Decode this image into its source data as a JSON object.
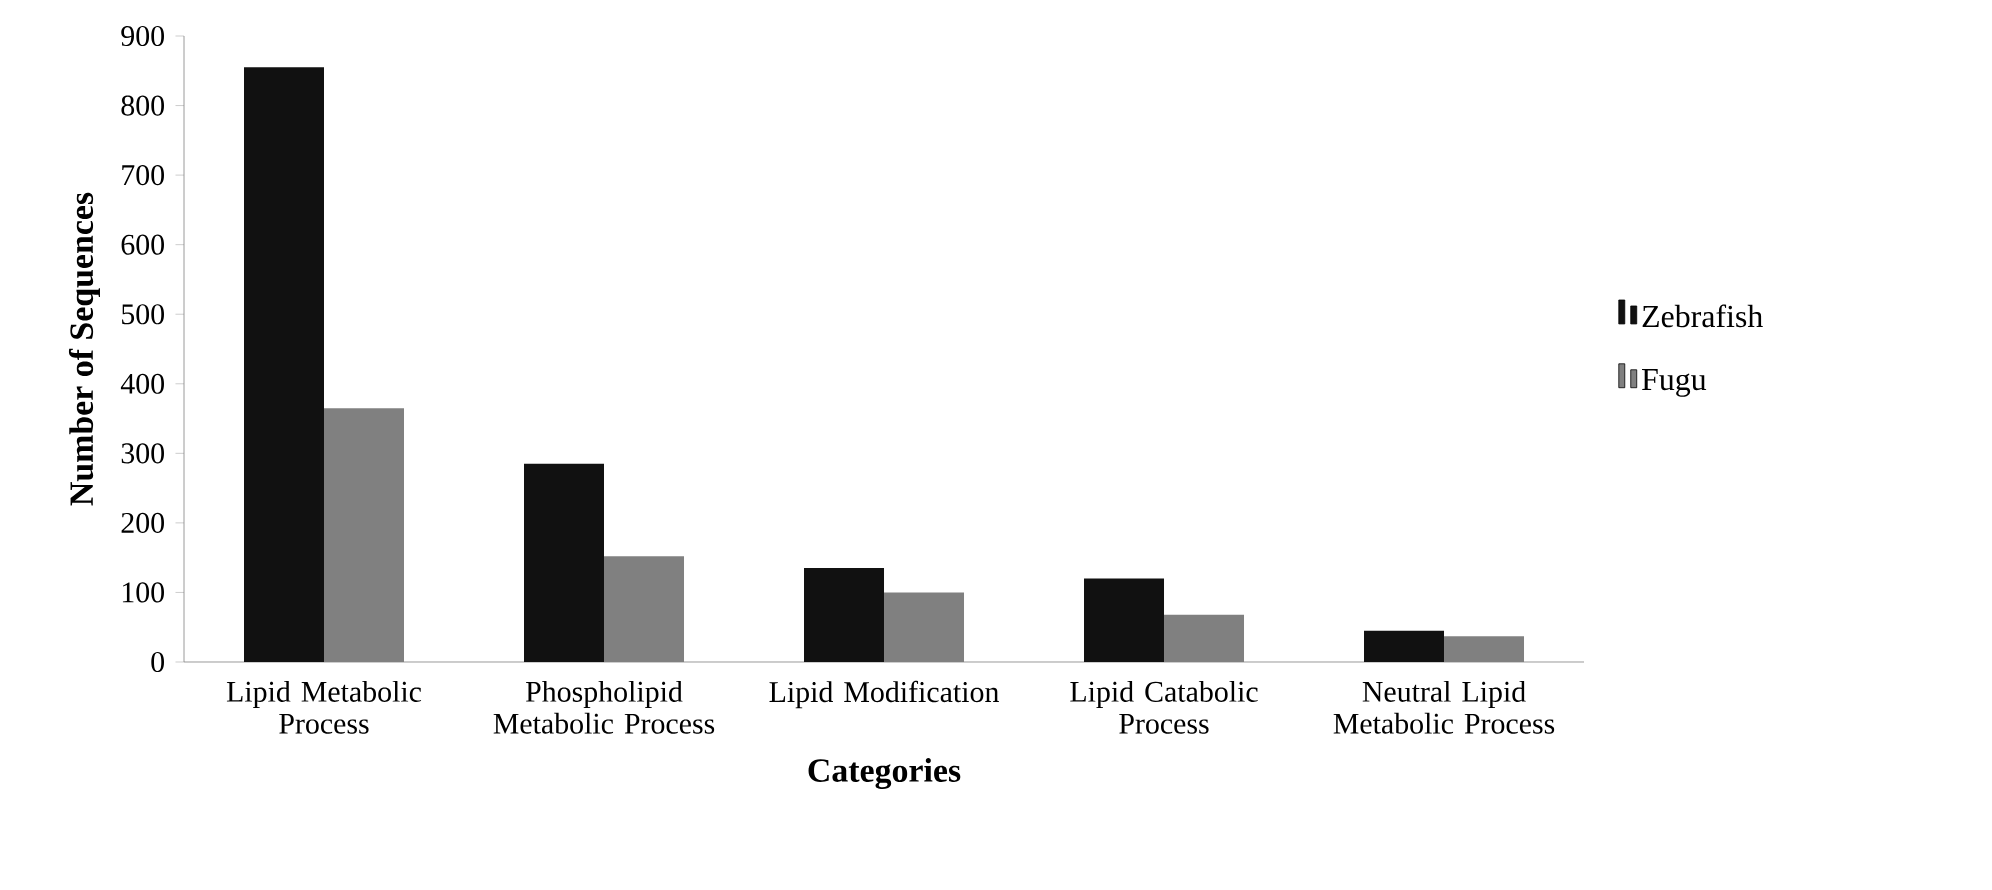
{
  "chart_data": {
    "type": "bar",
    "xlabel": "Categories",
    "ylabel": "Number of Sequences",
    "categories": [
      "Lipid Metabolic Process",
      "Phospholipid Metabolic Process",
      "Lipid Modification",
      "Lipid Catabolic Process",
      "Neutral Lipid Metabolic Process"
    ],
    "series": [
      {
        "name": "Zebrafish",
        "color": "#111111",
        "values": [
          855,
          285,
          135,
          120,
          45
        ]
      },
      {
        "name": "Fugu",
        "color": "#808080",
        "values": [
          365,
          152,
          100,
          68,
          37
        ]
      }
    ],
    "ylim": [
      0,
      900
    ],
    "yticks": [
      0,
      100,
      200,
      300,
      400,
      500,
      600,
      700,
      800,
      900
    ],
    "grid": false,
    "legend": "right"
  }
}
